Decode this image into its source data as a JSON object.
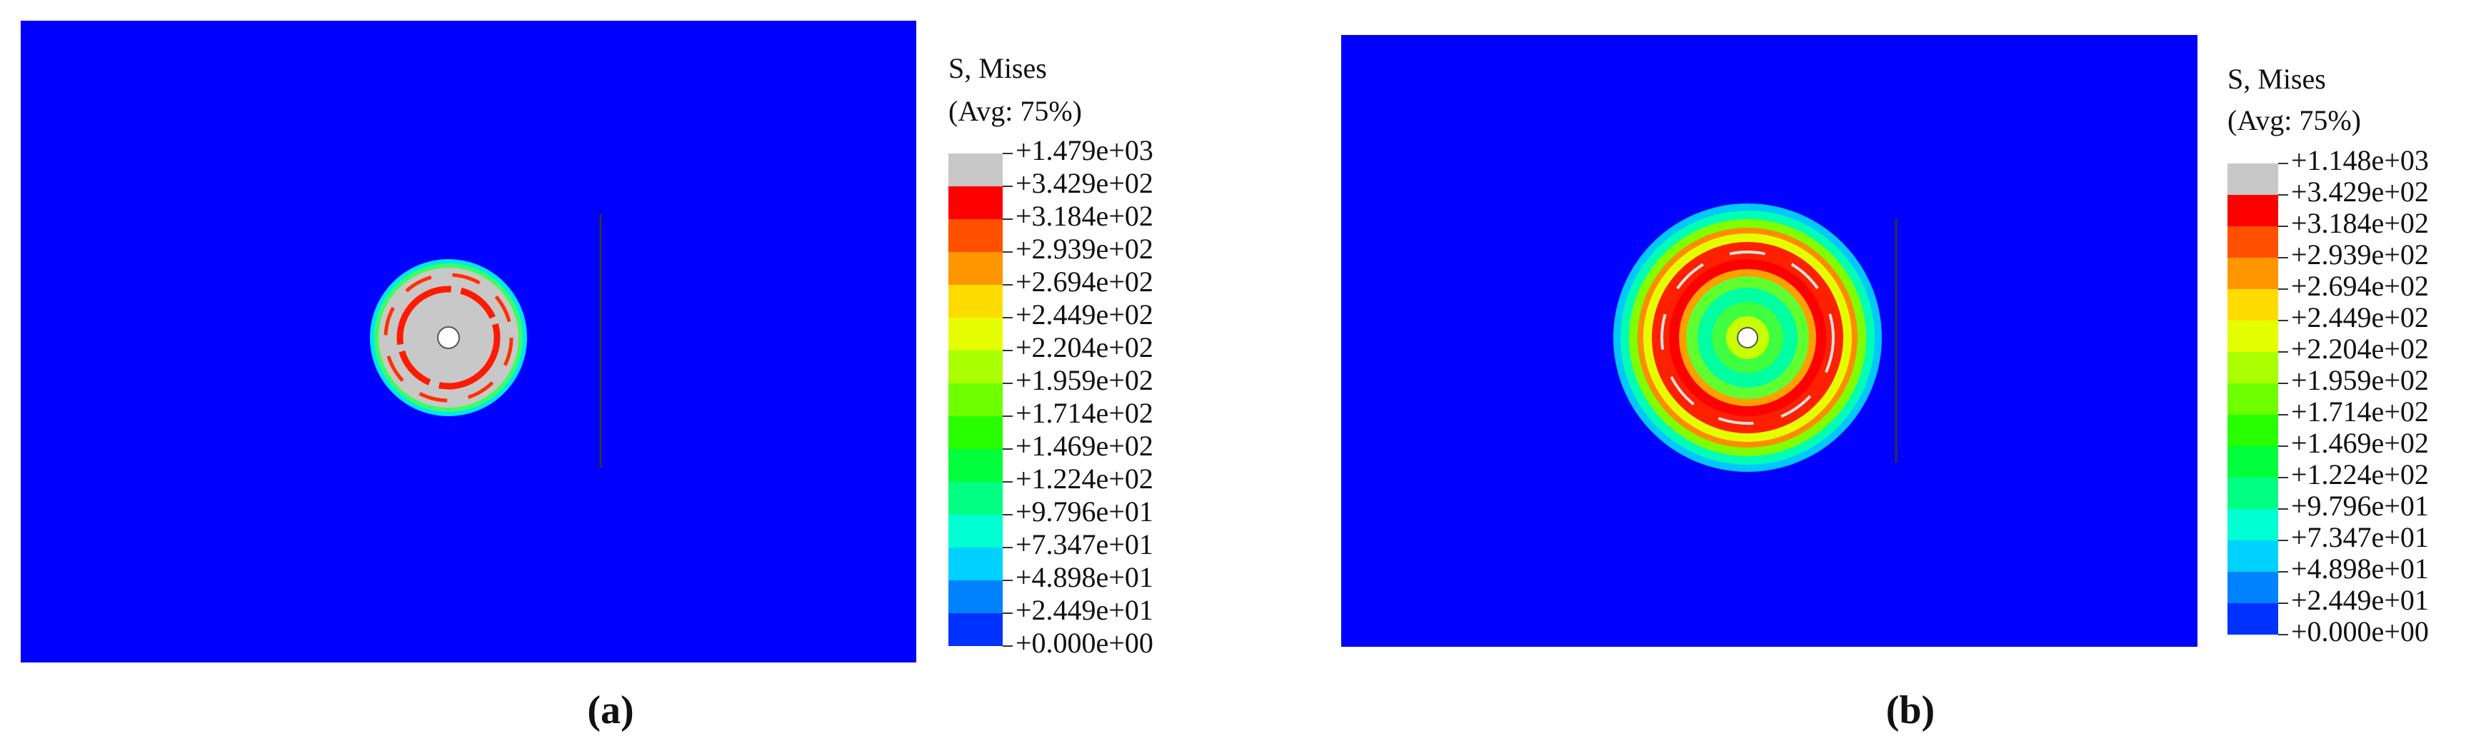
{
  "panels": [
    {
      "caption": "(a)",
      "legend": {
        "title": "S, Mises",
        "subtitle": "(Avg: 75%)",
        "levels": [
          "+1.479e+03",
          "+3.429e+02",
          "+3.184e+02",
          "+2.939e+02",
          "+2.694e+02",
          "+2.449e+02",
          "+2.204e+02",
          "+1.959e+02",
          "+1.714e+02",
          "+1.469e+02",
          "+1.224e+02",
          "+9.796e+01",
          "+7.347e+01",
          "+4.898e+01",
          "+2.449e+01",
          "+0.000e+00"
        ]
      }
    },
    {
      "caption": "(b)",
      "legend": {
        "title": "S, Mises",
        "subtitle": "(Avg: 75%)",
        "levels": [
          "+1.148e+03",
          "+3.429e+02",
          "+3.184e+02",
          "+2.939e+02",
          "+2.694e+02",
          "+2.449e+02",
          "+2.204e+02",
          "+1.959e+02",
          "+1.714e+02",
          "+1.469e+02",
          "+1.224e+02",
          "+9.796e+01",
          "+7.347e+01",
          "+4.898e+01",
          "+2.449e+01",
          "+0.000e+00"
        ]
      }
    }
  ]
}
